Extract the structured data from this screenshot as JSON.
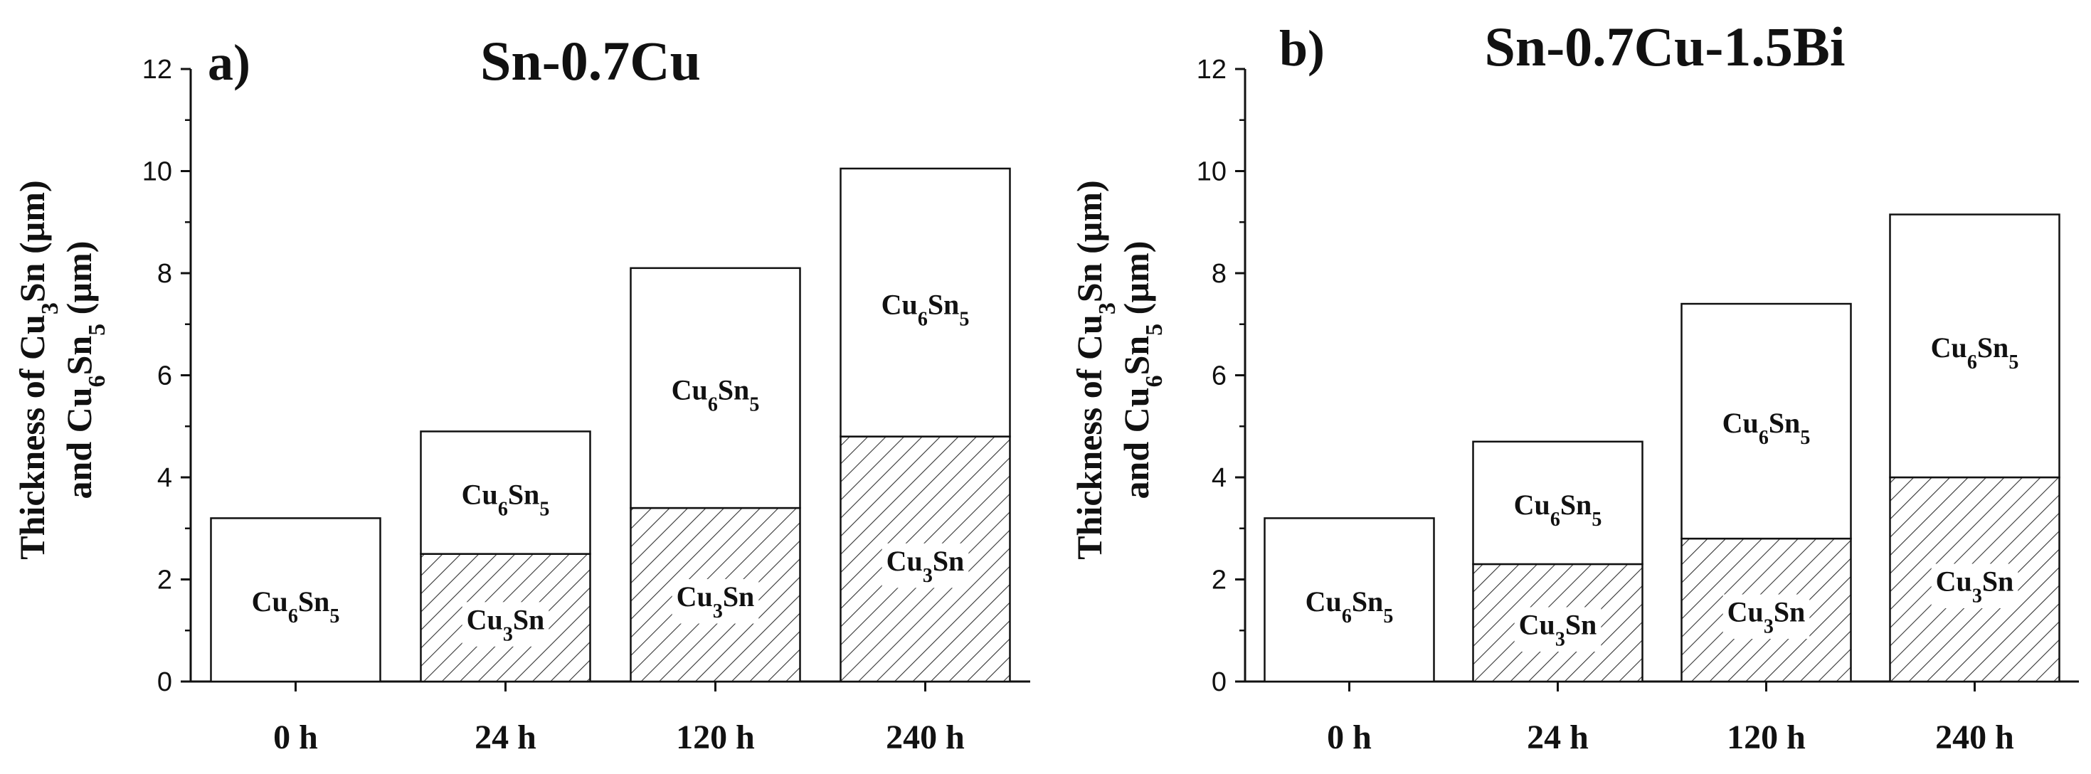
{
  "chart_data": [
    {
      "type": "bar",
      "stacked": true,
      "panel_label": "a)",
      "title": "Sn-0.7Cu",
      "ylabel_line1": "Thickness of Cu3Sn (µm)",
      "ylabel_line2": "and Cu6Sn5 (µm)",
      "ylim": [
        0,
        12
      ],
      "yticks": [
        "0",
        "2",
        "4",
        "6",
        "8",
        "10",
        "12"
      ],
      "categories": [
        "0 h",
        "24 h",
        "120 h",
        "240 h"
      ],
      "series": [
        {
          "name": "Cu3Sn",
          "pattern": "hatched",
          "values": [
            0,
            2.5,
            3.4,
            4.8
          ]
        },
        {
          "name": "Cu6Sn5",
          "pattern": "open",
          "values": [
            3.2,
            2.4,
            4.7,
            5.25
          ]
        }
      ]
    },
    {
      "type": "bar",
      "stacked": true,
      "panel_label": "b)",
      "title": "Sn-0.7Cu-1.5Bi",
      "ylabel_line1": "Thickness of Cu3Sn (µm)",
      "ylabel_line2": "and Cu6Sn5 (µm)",
      "ylim": [
        0,
        12
      ],
      "yticks": [
        "0",
        "2",
        "4",
        "6",
        "8",
        "10",
        "12"
      ],
      "categories": [
        "0 h",
        "24 h",
        "120 h",
        "240 h"
      ],
      "series": [
        {
          "name": "Cu3Sn",
          "pattern": "hatched",
          "values": [
            0,
            2.3,
            2.8,
            4.0
          ]
        },
        {
          "name": "Cu6Sn5",
          "pattern": "open",
          "values": [
            3.2,
            2.4,
            4.6,
            5.15
          ]
        }
      ]
    }
  ],
  "colors": {
    "axis": "#111111",
    "bar_fill": "#ffffff",
    "hatch": "#333333"
  }
}
